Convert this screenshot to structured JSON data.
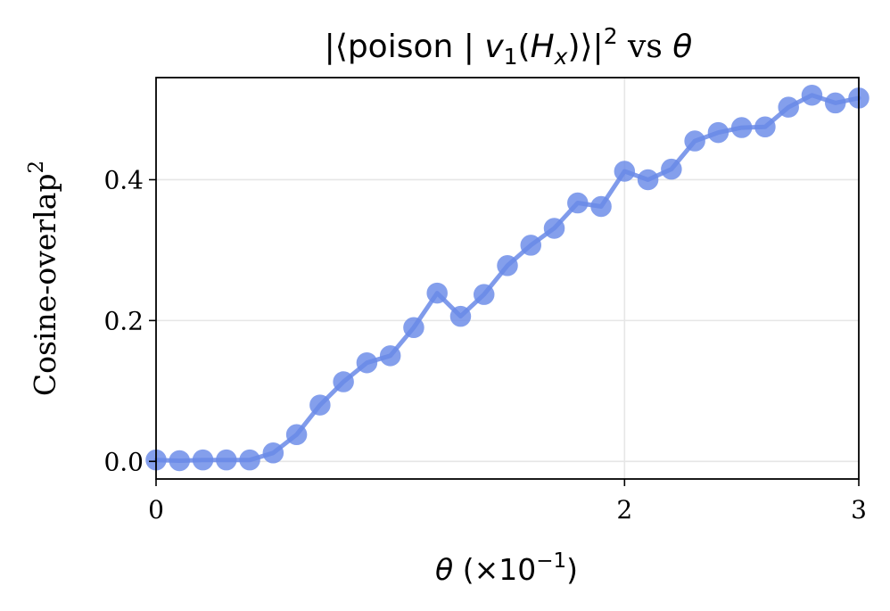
{
  "chart_data": {
    "type": "line",
    "title_parts": {
      "open": "|⟨poison | ",
      "v": "v",
      "v_sub": "1",
      "paren_open": "(",
      "H": "H",
      "H_sub": "x",
      "paren_close": ")⟩|",
      "sup": "2",
      "vs": " vs ",
      "theta": "θ"
    },
    "xlabel_parts": {
      "theta": "θ",
      "rest": " (×10",
      "sup": "−1",
      "close": ")"
    },
    "ylabel_parts": {
      "main": "Cosine-overlap",
      "sup": "2"
    },
    "xlim": [
      0,
      3
    ],
    "ylim": [
      -0.025,
      0.545
    ],
    "xticks": [
      0,
      2,
      3
    ],
    "xtick_labels": [
      "0",
      "2",
      "3"
    ],
    "yticks": [
      0.0,
      0.2,
      0.4
    ],
    "ytick_labels": [
      "0.0",
      "0.2",
      "0.4"
    ],
    "grid": true,
    "series": [
      {
        "color": "#6a8ae8",
        "x": [
          0.0,
          0.1,
          0.2,
          0.3,
          0.4,
          0.5,
          0.6,
          0.7,
          0.8,
          0.9,
          1.0,
          1.1,
          1.2,
          1.3,
          1.4,
          1.5,
          1.6,
          1.7,
          1.8,
          1.9,
          2.0,
          2.1,
          2.2,
          2.3,
          2.4,
          2.5,
          2.6,
          2.7,
          2.8,
          2.9,
          3.0
        ],
        "y": [
          0.002,
          0.001,
          0.002,
          0.002,
          0.002,
          0.012,
          0.038,
          0.08,
          0.113,
          0.14,
          0.15,
          0.19,
          0.239,
          0.206,
          0.237,
          0.278,
          0.307,
          0.331,
          0.367,
          0.362,
          0.412,
          0.4,
          0.415,
          0.455,
          0.467,
          0.474,
          0.475,
          0.503,
          0.52,
          0.509,
          0.516
        ]
      }
    ]
  }
}
